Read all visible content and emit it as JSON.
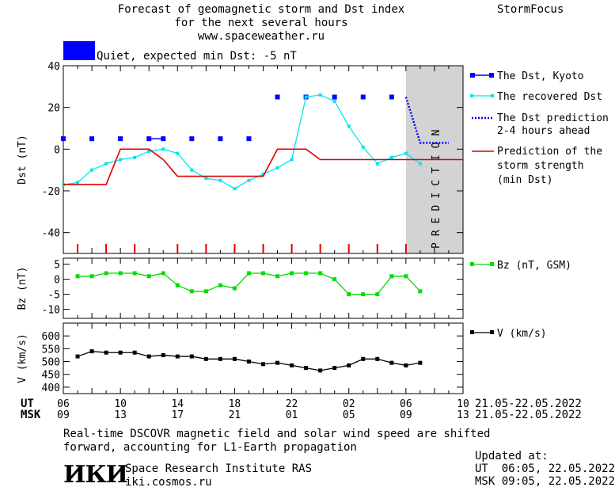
{
  "header": {
    "title_line1": "Forecast of geomagnetic storm and Dst index",
    "title_line2": "for the next several hours",
    "url": "www.spaceweather.ru",
    "brand": "StormFocus",
    "status_text": "Quiet, expected min Dst: -5 nT",
    "status_color": "#0000ff"
  },
  "prediction_label": "PREDICTION",
  "legend": {
    "dst_kyoto": "The Dst, Kyoto",
    "recovered": "The recovered Dst",
    "prediction_l1": "The Dst prediction",
    "prediction_l2": "2-4 hours ahead",
    "strength_l1": "Prediction of the",
    "strength_l2": "storm strength",
    "strength_l3": "(min Dst)",
    "bz": "Bz (nT, GSM)",
    "v": "V (km/s)"
  },
  "time_axis": {
    "ut_label": "UT",
    "msk_label": "MSK",
    "ut_ticks": [
      "06",
      "10",
      "14",
      "18",
      "22",
      "02",
      "06",
      "10"
    ],
    "msk_ticks": [
      "09",
      "13",
      "17",
      "21",
      "01",
      "05",
      "09",
      "13"
    ],
    "date_range_ut": "21.05-22.05.2022",
    "date_range_msk": "21.05-22.05.2022"
  },
  "footer": {
    "note_l1": "Real-time DSCOVR magnetic field and solar wind speed are shifted",
    "note_l2": "forward, accounting for L1-Earth propagation",
    "institute": "Space Research Institute RAS",
    "site": "iki.cosmos.ru",
    "logo_text": "ИКИ",
    "updated_label": "Updated at:",
    "updated_ut": "UT  06:05, 22.05.2022",
    "updated_msk": "MSK 09:05, 22.05.2022"
  },
  "colors": {
    "dst_kyoto": "#0000ff",
    "recovered": "#00e5ee",
    "prediction": "#0000ff",
    "strength": "#dd0000",
    "bz": "#00dd00",
    "v": "#000000",
    "prediction_zone": "#d3d3d3"
  },
  "chart_data": [
    {
      "type": "line",
      "ylabel": "Dst (nT)",
      "ylim": [
        -50,
        40
      ],
      "yticks": [
        40,
        20,
        0,
        -20,
        -40
      ],
      "xlim": [
        6,
        34
      ],
      "prediction_zone": [
        30,
        34
      ],
      "series": [
        {
          "name": "The Dst, Kyoto",
          "style": "squares",
          "x": [
            6,
            8,
            10,
            12,
            13,
            15,
            17,
            19,
            21,
            23,
            25,
            27,
            29
          ],
          "values": [
            5,
            5,
            5,
            5,
            5,
            5,
            5,
            5,
            25,
            25,
            25,
            25,
            25
          ]
        },
        {
          "name": "The recovered Dst",
          "style": "line",
          "x": [
            6,
            7,
            8,
            9,
            10,
            11,
            12,
            13,
            14,
            15,
            16,
            17,
            18,
            19,
            20,
            21,
            22,
            23,
            24,
            25,
            26,
            27,
            28,
            29,
            30,
            31
          ],
          "values": [
            -17,
            -16,
            -10,
            -7,
            -5,
            -4,
            -1,
            0,
            -2,
            -10,
            -14,
            -15,
            -19,
            -15,
            -12,
            -9,
            -5,
            25,
            26,
            23,
            11,
            1,
            -7,
            -4,
            -2,
            -7
          ]
        },
        {
          "name": "The Dst prediction 2-4 hours ahead",
          "style": "dotted",
          "x": [
            30,
            31,
            32,
            33
          ],
          "values": [
            25,
            3,
            3,
            3
          ]
        },
        {
          "name": "Prediction of the storm strength (min Dst)",
          "style": "step",
          "x": [
            6,
            9,
            10,
            12,
            13,
            14,
            19,
            20,
            21,
            23,
            24,
            34
          ],
          "values": [
            -17,
            -17,
            0,
            0,
            -5,
            -13,
            -13,
            -13,
            0,
            0,
            -5,
            -5
          ]
        }
      ],
      "tick_marks_x": [
        7,
        9,
        11,
        14,
        16,
        18,
        20,
        22,
        24,
        26,
        28,
        30
      ]
    },
    {
      "type": "line",
      "ylabel": "Bz (nT)",
      "ylim": [
        -13,
        7
      ],
      "yticks": [
        5,
        0,
        -5,
        -10
      ],
      "xlim": [
        6,
        34
      ],
      "series": [
        {
          "name": "Bz (nT, GSM)",
          "x": [
            7,
            8,
            9,
            10,
            11,
            12,
            13,
            14,
            15,
            16,
            17,
            18,
            19,
            20,
            21,
            22,
            23,
            24,
            25,
            26,
            27,
            28,
            29,
            30,
            31
          ],
          "values": [
            1,
            1,
            2,
            2,
            2,
            1,
            2,
            -2,
            -4,
            -4,
            -2,
            -3,
            2,
            2,
            1,
            2,
            2,
            2,
            0,
            -5,
            -5,
            -5,
            1,
            1,
            -4
          ]
        }
      ]
    },
    {
      "type": "line",
      "ylabel": "V (km/s)",
      "ylim": [
        375,
        650
      ],
      "yticks": [
        600,
        550,
        500,
        450,
        400
      ],
      "xlim": [
        6,
        34
      ],
      "series": [
        {
          "name": "V (km/s)",
          "x": [
            7,
            8,
            9,
            10,
            11,
            12,
            13,
            14,
            15,
            16,
            17,
            18,
            19,
            20,
            21,
            22,
            23,
            24,
            25,
            26,
            27,
            28,
            29,
            30,
            31
          ],
          "values": [
            520,
            540,
            535,
            535,
            535,
            520,
            525,
            520,
            520,
            510,
            510,
            510,
            500,
            490,
            495,
            485,
            475,
            465,
            475,
            485,
            510,
            510,
            495,
            485,
            495
          ]
        }
      ]
    }
  ]
}
